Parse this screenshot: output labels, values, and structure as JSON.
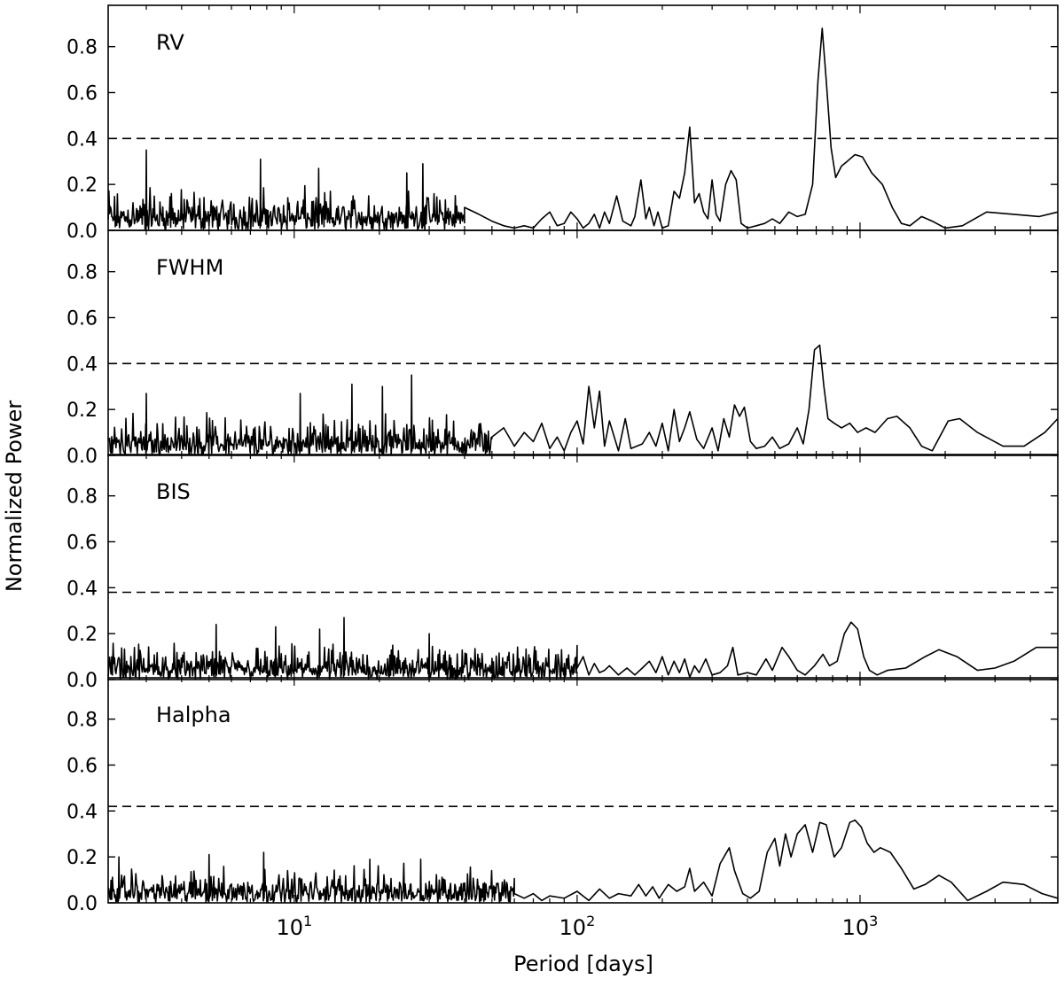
{
  "chart_data": {
    "type": "line",
    "xlabel": "Period [days]",
    "ylabel": "Normalized Power",
    "xscale": "log",
    "xlim": [
      2.2,
      5000
    ],
    "ylim": [
      0,
      0.98
    ],
    "x_ticks": [
      {
        "value": 10,
        "base": "10",
        "exp": "1"
      },
      {
        "value": 100,
        "base": "10",
        "exp": "2"
      },
      {
        "value": 1000,
        "base": "10",
        "exp": "3"
      }
    ],
    "y_ticks": [
      "0.0",
      "0.2",
      "0.4",
      "0.6",
      "0.8"
    ],
    "line_color": "#000000",
    "grid": false,
    "panels": [
      {
        "label": "RV",
        "threshold": 0.4,
        "noise": {
          "xmax": 40,
          "base": 0.075,
          "amp": 0.13,
          "spikes": [
            [
              3.0,
              0.35
            ],
            [
              7.6,
              0.31
            ],
            [
              28.5,
              0.29
            ],
            [
              12.2,
              0.27
            ],
            [
              25.0,
              0.25
            ]
          ]
        },
        "series": [
          [
            40,
            0.1
          ],
          [
            45,
            0.07
          ],
          [
            50,
            0.04
          ],
          [
            55,
            0.02
          ],
          [
            60,
            0.01
          ],
          [
            65,
            0.02
          ],
          [
            70,
            0.01
          ],
          [
            75,
            0.05
          ],
          [
            80,
            0.08
          ],
          [
            85,
            0.02
          ],
          [
            90,
            0.03
          ],
          [
            95,
            0.08
          ],
          [
            100,
            0.05
          ],
          [
            105,
            0.01
          ],
          [
            110,
            0.03
          ],
          [
            115,
            0.07
          ],
          [
            120,
            0.01
          ],
          [
            125,
            0.08
          ],
          [
            130,
            0.03
          ],
          [
            138,
            0.15
          ],
          [
            145,
            0.04
          ],
          [
            155,
            0.02
          ],
          [
            160,
            0.06
          ],
          [
            168,
            0.22
          ],
          [
            175,
            0.05
          ],
          [
            180,
            0.1
          ],
          [
            187,
            0.02
          ],
          [
            193,
            0.08
          ],
          [
            200,
            0.01
          ],
          [
            210,
            0.02
          ],
          [
            220,
            0.17
          ],
          [
            230,
            0.14
          ],
          [
            240,
            0.25
          ],
          [
            250,
            0.45
          ],
          [
            260,
            0.12
          ],
          [
            270,
            0.16
          ],
          [
            280,
            0.08
          ],
          [
            290,
            0.05
          ],
          [
            300,
            0.22
          ],
          [
            310,
            0.07
          ],
          [
            320,
            0.04
          ],
          [
            335,
            0.2
          ],
          [
            350,
            0.26
          ],
          [
            365,
            0.22
          ],
          [
            380,
            0.03
          ],
          [
            400,
            0.01
          ],
          [
            430,
            0.02
          ],
          [
            460,
            0.03
          ],
          [
            490,
            0.05
          ],
          [
            520,
            0.03
          ],
          [
            560,
            0.08
          ],
          [
            600,
            0.06
          ],
          [
            640,
            0.07
          ],
          [
            680,
            0.2
          ],
          [
            710,
            0.65
          ],
          [
            735,
            0.88
          ],
          [
            760,
            0.65
          ],
          [
            790,
            0.36
          ],
          [
            820,
            0.23
          ],
          [
            860,
            0.28
          ],
          [
            900,
            0.3
          ],
          [
            960,
            0.33
          ],
          [
            1020,
            0.32
          ],
          [
            1100,
            0.25
          ],
          [
            1200,
            0.2
          ],
          [
            1300,
            0.1
          ],
          [
            1400,
            0.03
          ],
          [
            1500,
            0.02
          ],
          [
            1650,
            0.06
          ],
          [
            1800,
            0.04
          ],
          [
            2000,
            0.01
          ],
          [
            2300,
            0.02
          ],
          [
            2800,
            0.08
          ],
          [
            3500,
            0.07
          ],
          [
            4300,
            0.06
          ],
          [
            5000,
            0.08
          ]
        ]
      },
      {
        "label": "FWHM",
        "threshold": 0.4,
        "noise": {
          "xmax": 50,
          "base": 0.065,
          "amp": 0.14,
          "spikes": [
            [
              26.0,
              0.35
            ],
            [
              16.0,
              0.31
            ],
            [
              20.5,
              0.3
            ],
            [
              3.0,
              0.27
            ],
            [
              10.5,
              0.27
            ]
          ]
        },
        "series": [
          [
            50,
            0.08
          ],
          [
            55,
            0.12
          ],
          [
            60,
            0.04
          ],
          [
            65,
            0.1
          ],
          [
            70,
            0.06
          ],
          [
            75,
            0.14
          ],
          [
            80,
            0.03
          ],
          [
            85,
            0.08
          ],
          [
            90,
            0.02
          ],
          [
            95,
            0.1
          ],
          [
            100,
            0.15
          ],
          [
            105,
            0.05
          ],
          [
            110,
            0.3
          ],
          [
            115,
            0.12
          ],
          [
            120,
            0.28
          ],
          [
            125,
            0.04
          ],
          [
            130,
            0.15
          ],
          [
            140,
            0.02
          ],
          [
            148,
            0.16
          ],
          [
            155,
            0.03
          ],
          [
            170,
            0.05
          ],
          [
            180,
            0.1
          ],
          [
            190,
            0.04
          ],
          [
            200,
            0.14
          ],
          [
            210,
            0.02
          ],
          [
            220,
            0.2
          ],
          [
            230,
            0.06
          ],
          [
            240,
            0.12
          ],
          [
            250,
            0.19
          ],
          [
            265,
            0.07
          ],
          [
            280,
            0.03
          ],
          [
            300,
            0.12
          ],
          [
            315,
            0.02
          ],
          [
            330,
            0.16
          ],
          [
            345,
            0.08
          ],
          [
            360,
            0.22
          ],
          [
            375,
            0.17
          ],
          [
            390,
            0.21
          ],
          [
            410,
            0.06
          ],
          [
            430,
            0.03
          ],
          [
            460,
            0.04
          ],
          [
            490,
            0.08
          ],
          [
            520,
            0.03
          ],
          [
            560,
            0.05
          ],
          [
            600,
            0.12
          ],
          [
            630,
            0.05
          ],
          [
            660,
            0.2
          ],
          [
            690,
            0.46
          ],
          [
            720,
            0.48
          ],
          [
            745,
            0.3
          ],
          [
            770,
            0.16
          ],
          [
            810,
            0.14
          ],
          [
            860,
            0.12
          ],
          [
            920,
            0.14
          ],
          [
            980,
            0.1
          ],
          [
            1050,
            0.12
          ],
          [
            1130,
            0.1
          ],
          [
            1250,
            0.16
          ],
          [
            1350,
            0.17
          ],
          [
            1500,
            0.12
          ],
          [
            1650,
            0.04
          ],
          [
            1800,
            0.02
          ],
          [
            2050,
            0.15
          ],
          [
            2250,
            0.16
          ],
          [
            2600,
            0.1
          ],
          [
            3200,
            0.04
          ],
          [
            3800,
            0.04
          ],
          [
            4500,
            0.1
          ],
          [
            5000,
            0.16
          ]
        ]
      },
      {
        "label": "BIS",
        "threshold": 0.38,
        "noise": {
          "xmax": 100,
          "base": 0.055,
          "amp": 0.12,
          "spikes": [
            [
              15.0,
              0.27
            ],
            [
              5.3,
              0.24
            ],
            [
              8.6,
              0.23
            ],
            [
              12.3,
              0.22
            ],
            [
              30.0,
              0.2
            ]
          ]
        },
        "series": [
          [
            100,
            0.05
          ],
          [
            105,
            0.1
          ],
          [
            110,
            0.02
          ],
          [
            115,
            0.07
          ],
          [
            120,
            0.03
          ],
          [
            125,
            0.04
          ],
          [
            130,
            0.06
          ],
          [
            140,
            0.02
          ],
          [
            150,
            0.05
          ],
          [
            160,
            0.02
          ],
          [
            170,
            0.05
          ],
          [
            180,
            0.08
          ],
          [
            190,
            0.03
          ],
          [
            200,
            0.1
          ],
          [
            210,
            0.02
          ],
          [
            220,
            0.08
          ],
          [
            230,
            0.03
          ],
          [
            240,
            0.09
          ],
          [
            250,
            0.01
          ],
          [
            260,
            0.06
          ],
          [
            270,
            0.03
          ],
          [
            285,
            0.09
          ],
          [
            300,
            0.02
          ],
          [
            320,
            0.03
          ],
          [
            340,
            0.06
          ],
          [
            355,
            0.14
          ],
          [
            370,
            0.02
          ],
          [
            400,
            0.03
          ],
          [
            430,
            0.02
          ],
          [
            465,
            0.09
          ],
          [
            490,
            0.04
          ],
          [
            530,
            0.14
          ],
          [
            560,
            0.1
          ],
          [
            600,
            0.04
          ],
          [
            640,
            0.02
          ],
          [
            690,
            0.06
          ],
          [
            740,
            0.11
          ],
          [
            780,
            0.06
          ],
          [
            830,
            0.08
          ],
          [
            880,
            0.2
          ],
          [
            930,
            0.25
          ],
          [
            980,
            0.22
          ],
          [
            1030,
            0.1
          ],
          [
            1080,
            0.04
          ],
          [
            1150,
            0.02
          ],
          [
            1250,
            0.04
          ],
          [
            1450,
            0.05
          ],
          [
            1700,
            0.1
          ],
          [
            1900,
            0.13
          ],
          [
            2200,
            0.1
          ],
          [
            2600,
            0.04
          ],
          [
            3000,
            0.05
          ],
          [
            3500,
            0.08
          ],
          [
            4200,
            0.14
          ],
          [
            5000,
            0.14
          ]
        ]
      },
      {
        "label": "Halpha",
        "threshold": 0.42,
        "noise": {
          "xmax": 60,
          "base": 0.06,
          "amp": 0.12,
          "spikes": [
            [
              2.4,
              0.2
            ],
            [
              5.0,
              0.21
            ],
            [
              7.8,
              0.22
            ],
            [
              18.5,
              0.19
            ],
            [
              28.0,
              0.19
            ]
          ]
        },
        "series": [
          [
            60,
            0.04
          ],
          [
            65,
            0.02
          ],
          [
            70,
            0.04
          ],
          [
            75,
            0.01
          ],
          [
            80,
            0.03
          ],
          [
            90,
            0.02
          ],
          [
            100,
            0.05
          ],
          [
            110,
            0.01
          ],
          [
            120,
            0.06
          ],
          [
            130,
            0.02
          ],
          [
            140,
            0.04
          ],
          [
            155,
            0.03
          ],
          [
            165,
            0.08
          ],
          [
            175,
            0.03
          ],
          [
            185,
            0.07
          ],
          [
            195,
            0.02
          ],
          [
            210,
            0.08
          ],
          [
            225,
            0.05
          ],
          [
            240,
            0.07
          ],
          [
            250,
            0.15
          ],
          [
            260,
            0.05
          ],
          [
            280,
            0.09
          ],
          [
            300,
            0.03
          ],
          [
            320,
            0.17
          ],
          [
            345,
            0.24
          ],
          [
            360,
            0.14
          ],
          [
            385,
            0.04
          ],
          [
            410,
            0.02
          ],
          [
            440,
            0.05
          ],
          [
            470,
            0.22
          ],
          [
            500,
            0.28
          ],
          [
            520,
            0.16
          ],
          [
            545,
            0.3
          ],
          [
            570,
            0.2
          ],
          [
            600,
            0.3
          ],
          [
            640,
            0.34
          ],
          [
            680,
            0.22
          ],
          [
            720,
            0.35
          ],
          [
            760,
            0.34
          ],
          [
            810,
            0.2
          ],
          [
            860,
            0.24
          ],
          [
            920,
            0.35
          ],
          [
            960,
            0.36
          ],
          [
            1010,
            0.33
          ],
          [
            1060,
            0.26
          ],
          [
            1120,
            0.22
          ],
          [
            1180,
            0.24
          ],
          [
            1280,
            0.22
          ],
          [
            1400,
            0.15
          ],
          [
            1550,
            0.06
          ],
          [
            1700,
            0.08
          ],
          [
            1900,
            0.12
          ],
          [
            2100,
            0.09
          ],
          [
            2400,
            0.01
          ],
          [
            2800,
            0.05
          ],
          [
            3200,
            0.09
          ],
          [
            3800,
            0.08
          ],
          [
            4400,
            0.04
          ],
          [
            5000,
            0.02
          ]
        ]
      }
    ]
  }
}
